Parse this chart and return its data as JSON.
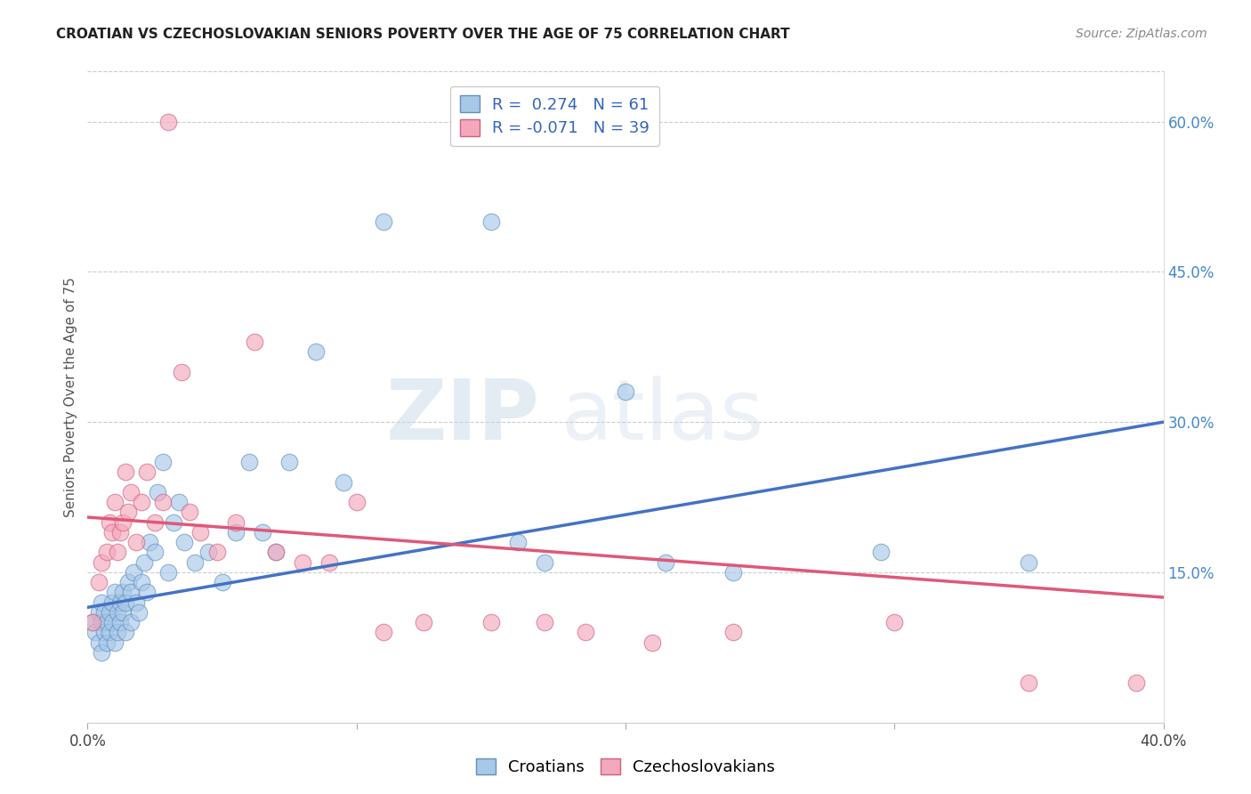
{
  "title": "CROATIAN VS CZECHOSLOVAKIAN SENIORS POVERTY OVER THE AGE OF 75 CORRELATION CHART",
  "source": "Source: ZipAtlas.com",
  "ylabel": "Seniors Poverty Over the Age of 75",
  "xlim": [
    0.0,
    0.4
  ],
  "ylim": [
    0.0,
    0.65
  ],
  "x_ticks": [
    0.0,
    0.1,
    0.2,
    0.3,
    0.4
  ],
  "x_tick_labels": [
    "0.0%",
    "",
    "",
    "",
    "40.0%"
  ],
  "y_ticks_right": [
    0.15,
    0.3,
    0.45,
    0.6
  ],
  "y_tick_labels_right": [
    "15.0%",
    "30.0%",
    "45.0%",
    "60.0%"
  ],
  "blue_color": "#A8C8E8",
  "pink_color": "#F4A8BC",
  "blue_edge_color": "#6090C0",
  "pink_edge_color": "#D06080",
  "blue_line_color": "#4472C4",
  "pink_line_color": "#E05878",
  "blue_R": 0.274,
  "blue_N": 61,
  "pink_R": -0.071,
  "pink_N": 39,
  "watermark_zip": "ZIP",
  "watermark_atlas": "atlas",
  "legend_label_blue": "Croatians",
  "legend_label_pink": "Czechoslovakians",
  "blue_line_x0": 0.0,
  "blue_line_y0": 0.115,
  "blue_line_x1": 0.4,
  "blue_line_y1": 0.3,
  "pink_line_x0": 0.0,
  "pink_line_y0": 0.205,
  "pink_line_x1": 0.4,
  "pink_line_y1": 0.125,
  "croatians_x": [
    0.002,
    0.003,
    0.004,
    0.004,
    0.005,
    0.005,
    0.005,
    0.006,
    0.006,
    0.007,
    0.007,
    0.008,
    0.008,
    0.009,
    0.009,
    0.01,
    0.01,
    0.011,
    0.011,
    0.012,
    0.012,
    0.013,
    0.013,
    0.014,
    0.014,
    0.015,
    0.016,
    0.016,
    0.017,
    0.018,
    0.019,
    0.02,
    0.021,
    0.022,
    0.023,
    0.025,
    0.026,
    0.028,
    0.03,
    0.032,
    0.034,
    0.036,
    0.04,
    0.045,
    0.05,
    0.055,
    0.06,
    0.065,
    0.07,
    0.075,
    0.085,
    0.095,
    0.11,
    0.15,
    0.16,
    0.17,
    0.2,
    0.215,
    0.24,
    0.295,
    0.35
  ],
  "croatians_y": [
    0.1,
    0.09,
    0.11,
    0.08,
    0.1,
    0.12,
    0.07,
    0.09,
    0.11,
    0.1,
    0.08,
    0.11,
    0.09,
    0.12,
    0.1,
    0.13,
    0.08,
    0.11,
    0.09,
    0.12,
    0.1,
    0.11,
    0.13,
    0.09,
    0.12,
    0.14,
    0.1,
    0.13,
    0.15,
    0.12,
    0.11,
    0.14,
    0.16,
    0.13,
    0.18,
    0.17,
    0.23,
    0.26,
    0.15,
    0.2,
    0.22,
    0.18,
    0.16,
    0.17,
    0.14,
    0.19,
    0.26,
    0.19,
    0.17,
    0.26,
    0.37,
    0.24,
    0.5,
    0.5,
    0.18,
    0.16,
    0.33,
    0.16,
    0.15,
    0.17,
    0.16
  ],
  "czechoslovakians_x": [
    0.002,
    0.004,
    0.005,
    0.007,
    0.008,
    0.009,
    0.01,
    0.011,
    0.012,
    0.013,
    0.014,
    0.015,
    0.016,
    0.018,
    0.02,
    0.022,
    0.025,
    0.028,
    0.03,
    0.035,
    0.038,
    0.042,
    0.048,
    0.055,
    0.062,
    0.07,
    0.08,
    0.09,
    0.1,
    0.11,
    0.125,
    0.15,
    0.17,
    0.185,
    0.21,
    0.24,
    0.3,
    0.35,
    0.39
  ],
  "czechoslovakians_y": [
    0.1,
    0.14,
    0.16,
    0.17,
    0.2,
    0.19,
    0.22,
    0.17,
    0.19,
    0.2,
    0.25,
    0.21,
    0.23,
    0.18,
    0.22,
    0.25,
    0.2,
    0.22,
    0.6,
    0.35,
    0.21,
    0.19,
    0.17,
    0.2,
    0.38,
    0.17,
    0.16,
    0.16,
    0.22,
    0.09,
    0.1,
    0.1,
    0.1,
    0.09,
    0.08,
    0.09,
    0.1,
    0.04,
    0.04
  ]
}
